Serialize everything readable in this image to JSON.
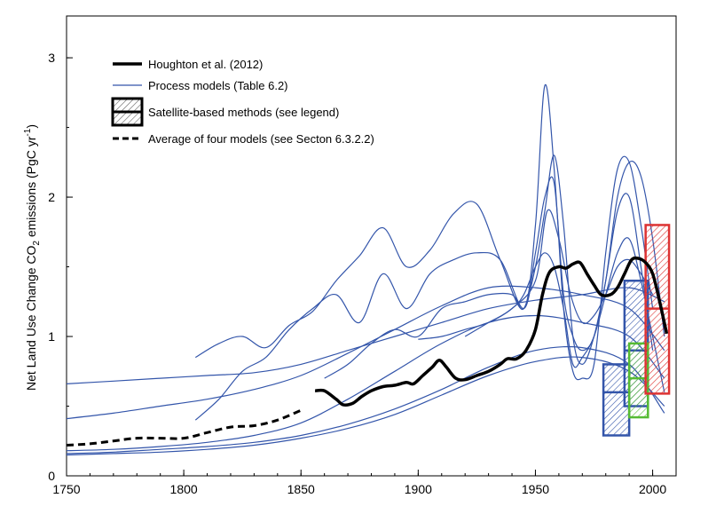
{
  "chart_data": {
    "type": "line",
    "ylabel_parts": {
      "a": "Net Land Use Change CO",
      "b": "2",
      "c": " emissions (PgC yr",
      "d": "-1",
      "e": ")"
    },
    "xlim": [
      1750,
      2010
    ],
    "ylim": [
      0,
      3.3
    ],
    "x_ticks": [
      "1750",
      "1800",
      "1850",
      "1900",
      "1950",
      "2000"
    ],
    "y_ticks": [
      "0",
      "1",
      "2",
      "3"
    ],
    "legend": {
      "position": "top-left",
      "items": [
        {
          "label": "Houghton et al. (2012)",
          "style": "thick-solid"
        },
        {
          "label": "Process models (Table 6.2)",
          "style": "thin-blue"
        },
        {
          "label": "Satellite-based methods (see legend)",
          "style": "hatched-box"
        },
        {
          "label": "Average of four models (see Secton 6.3.2.2)",
          "style": "dashed"
        }
      ]
    },
    "colors": {
      "houghton": "#000000",
      "process": "#3355aa",
      "box_blue": "#3355aa",
      "box_green": "#55bb33",
      "box_red": "#dd3333"
    },
    "houghton": {
      "x": [
        1856,
        1860,
        1865,
        1868,
        1872,
        1876,
        1880,
        1885,
        1890,
        1895,
        1898,
        1902,
        1906,
        1909,
        1912,
        1916,
        1920,
        1925,
        1930,
        1935,
        1938,
        1942,
        1946,
        1950,
        1953,
        1956,
        1960,
        1963,
        1966,
        1969,
        1972,
        1975,
        1978,
        1982,
        1985,
        1988,
        1991,
        1994,
        1997,
        2000,
        2003,
        2006
      ],
      "y": [
        0.61,
        0.61,
        0.55,
        0.51,
        0.52,
        0.57,
        0.61,
        0.64,
        0.65,
        0.67,
        0.66,
        0.72,
        0.78,
        0.83,
        0.78,
        0.7,
        0.69,
        0.72,
        0.75,
        0.8,
        0.84,
        0.84,
        0.9,
        1.05,
        1.3,
        1.46,
        1.5,
        1.49,
        1.52,
        1.53,
        1.45,
        1.37,
        1.3,
        1.3,
        1.35,
        1.45,
        1.55,
        1.56,
        1.53,
        1.45,
        1.25,
        1.02
      ]
    },
    "average_models": {
      "x": [
        1750,
        1760,
        1770,
        1780,
        1790,
        1800,
        1810,
        1820,
        1830,
        1840,
        1850
      ],
      "y": [
        0.22,
        0.23,
        0.25,
        0.27,
        0.27,
        0.27,
        0.31,
        0.35,
        0.36,
        0.4,
        0.47
      ]
    },
    "process_models": [
      {
        "x": [
          1750,
          1770,
          1790,
          1810,
          1830,
          1850,
          1870,
          1890,
          1910,
          1930,
          1950,
          1970,
          1990,
          2005
        ],
        "y": [
          0.66,
          0.68,
          0.7,
          0.72,
          0.74,
          0.8,
          0.9,
          1.0,
          1.1,
          1.2,
          1.26,
          1.3,
          1.35,
          1.25
        ]
      },
      {
        "x": [
          1750,
          1770,
          1790,
          1810,
          1830,
          1850,
          1870,
          1890,
          1910,
          1930,
          1950,
          1970,
          1990,
          2005
        ],
        "y": [
          0.41,
          0.45,
          0.5,
          0.55,
          0.62,
          0.72,
          0.88,
          1.05,
          1.22,
          1.35,
          1.35,
          1.3,
          1.2,
          0.9
        ]
      },
      {
        "x": [
          1750,
          1770,
          1790,
          1810,
          1830,
          1850,
          1870,
          1890,
          1910,
          1930,
          1950,
          1970,
          1990,
          2005
        ],
        "y": [
          0.18,
          0.19,
          0.21,
          0.24,
          0.29,
          0.38,
          0.55,
          0.75,
          0.95,
          1.1,
          1.15,
          1.1,
          1.0,
          0.7
        ]
      },
      {
        "x": [
          1750,
          1770,
          1790,
          1810,
          1830,
          1850,
          1870,
          1890,
          1910,
          1930,
          1950,
          1970,
          1990,
          2005
        ],
        "y": [
          0.16,
          0.17,
          0.19,
          0.21,
          0.24,
          0.29,
          0.37,
          0.48,
          0.62,
          0.78,
          0.9,
          0.92,
          0.8,
          0.45
        ]
      },
      {
        "x": [
          1750,
          1770,
          1790,
          1810,
          1830,
          1850,
          1870,
          1890,
          1910,
          1930,
          1950,
          1970,
          1990,
          2005
        ],
        "y": [
          0.15,
          0.16,
          0.17,
          0.19,
          0.22,
          0.27,
          0.34,
          0.44,
          0.58,
          0.72,
          0.82,
          0.85,
          0.75,
          0.5
        ]
      },
      {
        "x": [
          1805,
          1815,
          1825,
          1835,
          1845,
          1855,
          1865,
          1875,
          1885,
          1895,
          1905,
          1915,
          1925,
          1935,
          1945,
          1950,
          1954,
          1958,
          1962,
          1966,
          1970,
          1975,
          1980,
          1985,
          1990,
          1995,
          2000,
          2005
        ],
        "y": [
          0.4,
          0.55,
          0.75,
          0.85,
          1.05,
          1.2,
          1.3,
          1.1,
          1.45,
          1.2,
          1.45,
          1.55,
          1.6,
          1.55,
          1.2,
          1.6,
          2.0,
          2.1,
          1.3,
          1.0,
          0.9,
          1.0,
          1.4,
          2.0,
          2.25,
          2.15,
          1.7,
          1.0
        ]
      },
      {
        "x": [
          1805,
          1815,
          1825,
          1835,
          1845,
          1855,
          1865,
          1875,
          1885,
          1895,
          1905,
          1915,
          1925,
          1935,
          1945,
          1950,
          1954,
          1958,
          1962,
          1966,
          1970,
          1975,
          1980,
          1985,
          1990,
          1995,
          2000
        ],
        "y": [
          0.85,
          0.95,
          1.0,
          0.92,
          1.08,
          1.18,
          1.4,
          1.58,
          1.78,
          1.5,
          1.62,
          1.88,
          1.95,
          1.55,
          1.2,
          1.8,
          2.8,
          2.2,
          1.2,
          0.75,
          0.7,
          0.8,
          1.6,
          2.2,
          2.25,
          1.8,
          1.2
        ]
      },
      {
        "x": [
          1860,
          1870,
          1880,
          1890,
          1900,
          1910,
          1920,
          1930,
          1940,
          1945,
          1950,
          1954,
          1958,
          1962,
          1966,
          1970,
          1975,
          1980,
          1985,
          1990,
          1995,
          2000
        ],
        "y": [
          0.7,
          0.8,
          0.95,
          1.05,
          1.0,
          1.2,
          1.25,
          1.3,
          1.3,
          1.2,
          1.5,
          1.9,
          2.3,
          1.8,
          1.0,
          0.8,
          1.0,
          1.4,
          1.9,
          2.0,
          1.5,
          0.9
        ]
      },
      {
        "x": [
          1900,
          1910,
          1920,
          1930,
          1940,
          1945,
          1950,
          1954,
          1958,
          1962,
          1966,
          1970,
          1975,
          1980,
          1985,
          1990,
          1995,
          2000,
          2005
        ],
        "y": [
          0.98,
          1.0,
          1.05,
          1.1,
          1.2,
          1.3,
          1.5,
          1.6,
          1.5,
          1.2,
          0.8,
          0.85,
          1.0,
          1.3,
          1.6,
          1.7,
          1.4,
          1.0,
          0.6
        ]
      },
      {
        "x": [
          1920,
          1930,
          1940,
          1950,
          1955,
          1960,
          1965,
          1970,
          1975,
          1980,
          1985,
          1990,
          1995,
          2000
        ],
        "y": [
          1.0,
          1.1,
          1.2,
          1.4,
          1.9,
          1.7,
          1.3,
          1.1,
          1.15,
          1.3,
          1.5,
          1.55,
          1.45,
          1.3
        ]
      }
    ],
    "satellite_boxes": [
      {
        "color": "blue",
        "x0": 1979,
        "x1": 1990,
        "y0": 0.29,
        "y1": 0.8,
        "mid": 0.6
      },
      {
        "color": "blue",
        "x0": 1988,
        "x1": 1998,
        "y0": 0.5,
        "y1": 1.4,
        "mid": 0.9
      },
      {
        "color": "green",
        "x0": 1990,
        "x1": 1998,
        "y0": 0.42,
        "y1": 0.95,
        "mid": 0.7
      },
      {
        "color": "red",
        "x0": 1997,
        "x1": 2007,
        "y0": 0.59,
        "y1": 1.8,
        "mid": 1.2
      }
    ]
  }
}
